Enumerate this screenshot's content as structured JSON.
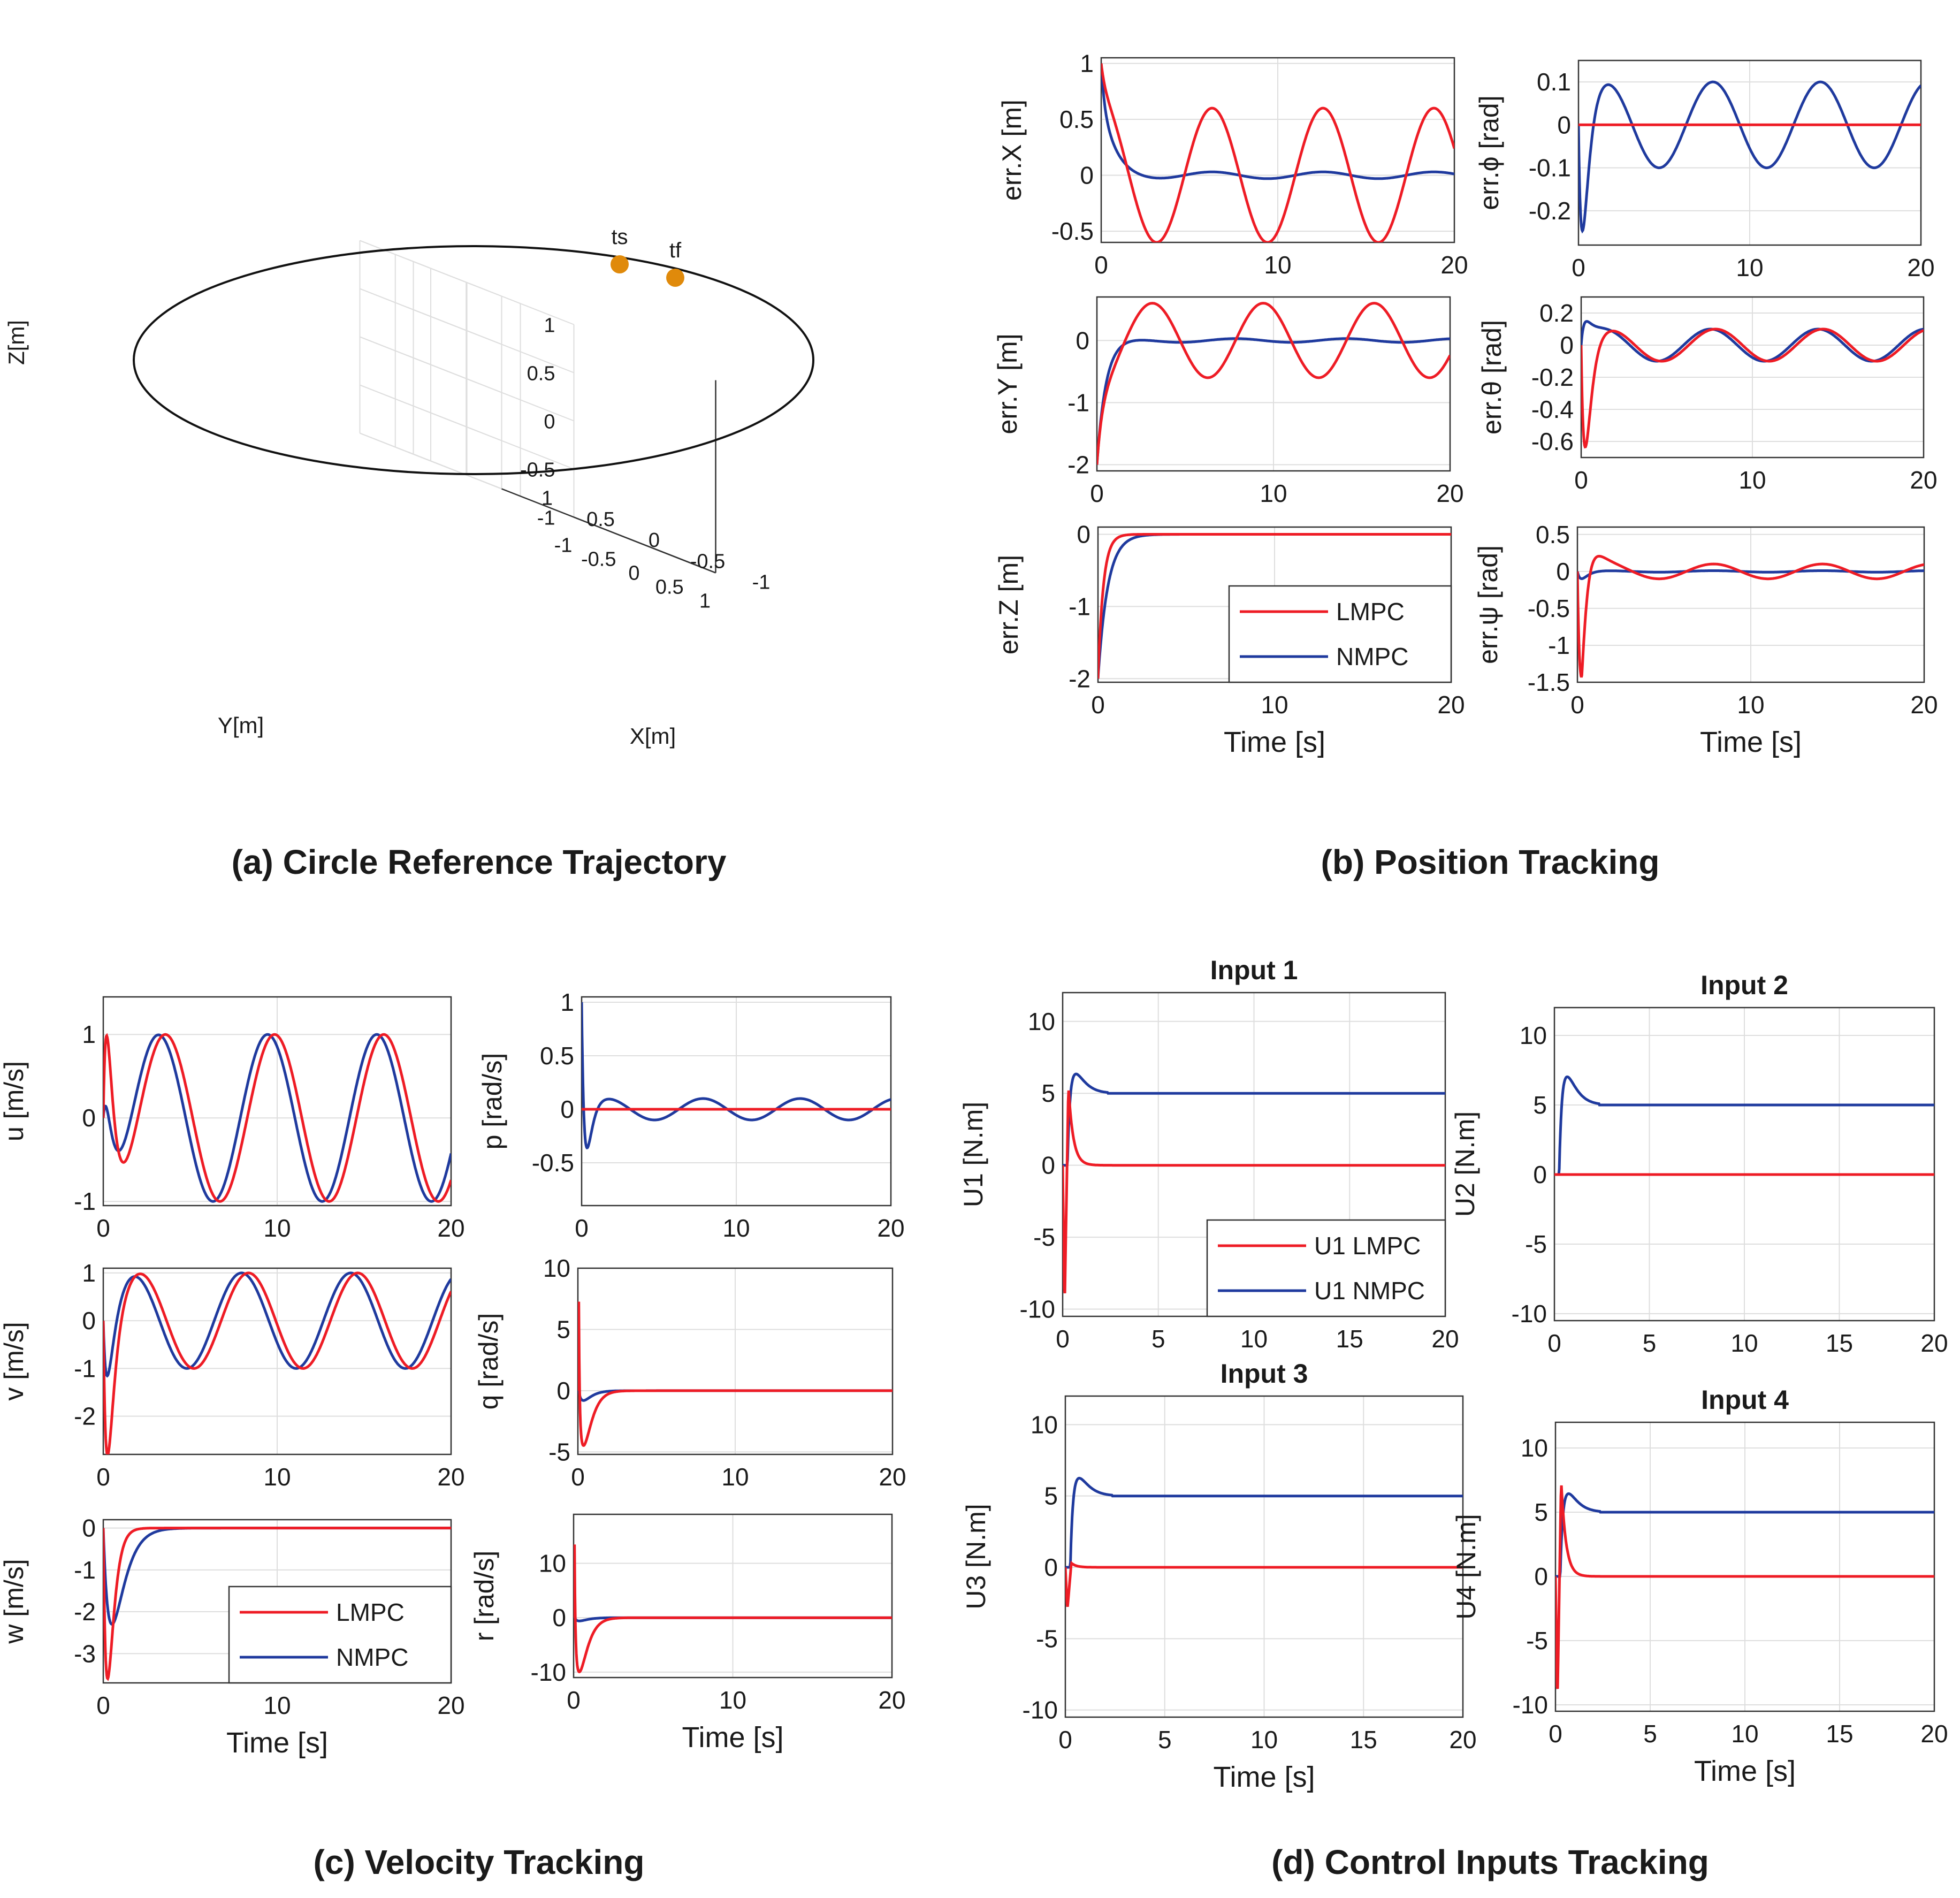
{
  "panels": {
    "a": {
      "caption": "(a) Circle Reference Trajectory"
    },
    "b": {
      "caption": "(b) Position Tracking"
    },
    "c": {
      "caption": "(c) Velocity Tracking"
    },
    "d": {
      "caption": "(d) Control Inputs Tracking"
    }
  },
  "colors": {
    "lmpc": "#ee1c25",
    "nmpc": "#1f3a9e",
    "trajectory": "#111111",
    "marker": "#e08a0b",
    "grid": "#dedede"
  },
  "chart_data": [
    {
      "panel": "a",
      "type": "line3d",
      "xlabel": "X[m]",
      "ylabel": "Y[m]",
      "zlabel": "Z[m]",
      "xlim": [
        -1,
        1
      ],
      "ylim": [
        -1,
        1
      ],
      "zlim": [
        -1,
        1
      ],
      "xticks": [
        "-1",
        "-0.5",
        "0",
        "0.5",
        "1"
      ],
      "yticks": [
        "-1",
        "-0.5",
        "0",
        "0.5",
        "1"
      ],
      "zticks": [
        "-1",
        "-0.5",
        "0",
        "0.5",
        "1"
      ],
      "grid": true,
      "series": [
        {
          "shape": "circle",
          "radius": 1,
          "z": 0
        }
      ],
      "annotations": [
        {
          "label": "ts",
          "angle_deg": 8
        },
        {
          "label": "tf",
          "angle_deg": 18
        }
      ]
    },
    {
      "panel": "b",
      "type": "line",
      "ylabel": "err.X [m]",
      "xlim": [
        0,
        20
      ],
      "ylim": [
        -0.6,
        1.05
      ],
      "yticks": [
        "-0.5",
        "0",
        "0.5",
        "1"
      ],
      "xticks": [
        "0",
        "10",
        "20"
      ],
      "xlabel": "",
      "series": [
        {
          "key": "lmpc",
          "model": "osc",
          "init": 1,
          "amp": 0.6,
          "period": 6.28,
          "phase": 1.57,
          "tau": 0.3
        },
        {
          "key": "nmpc",
          "model": "osc",
          "init": 1,
          "amp": 0.03,
          "period": 6.28,
          "phase": 1.57,
          "tau": 0.6,
          "over": -0.1
        }
      ]
    },
    {
      "panel": "b",
      "type": "line",
      "ylabel": "err.ϕ [rad]",
      "xlim": [
        0,
        20
      ],
      "ylim": [
        -0.28,
        0.15
      ],
      "yticks": [
        "-0.2",
        "-0.1",
        "0",
        "0.1"
      ],
      "xticks": [
        "0",
        "10",
        "20"
      ],
      "xlabel": "",
      "series": [
        {
          "key": "lmpc",
          "model": "const",
          "value": 0
        },
        {
          "key": "nmpc",
          "model": "osc",
          "init": 0,
          "amp": 0.1,
          "period": 6.28,
          "phase": 0,
          "tau": 0.3,
          "over": -0.26
        }
      ]
    },
    {
      "panel": "b",
      "type": "line",
      "ylabel": "err.Y [m]",
      "xlim": [
        0,
        20
      ],
      "ylim": [
        -2.1,
        0.7
      ],
      "yticks": [
        "-2",
        "-1",
        "0"
      ],
      "xticks": [
        "0",
        "10",
        "20"
      ],
      "xlabel": "",
      "series": [
        {
          "key": "lmpc",
          "model": "osc",
          "init": -2,
          "amp": 0.6,
          "period": 6.28,
          "phase": -1.57,
          "tau": 0.35
        },
        {
          "key": "nmpc",
          "model": "osc",
          "init": -2,
          "amp": 0.03,
          "period": 6.28,
          "phase": 0,
          "tau": 0.5
        }
      ]
    },
    {
      "panel": "b",
      "type": "line",
      "ylabel": "err.θ [rad]",
      "xlim": [
        0,
        20
      ],
      "ylim": [
        -0.7,
        0.3
      ],
      "yticks": [
        "-0.6",
        "-0.4",
        "-0.2",
        "0",
        "0.2"
      ],
      "xticks": [
        "0",
        "10",
        "20"
      ],
      "xlabel": "",
      "series": [
        {
          "key": "lmpc",
          "model": "osc",
          "init": 0,
          "amp": 0.1,
          "period": 6.28,
          "phase": 0,
          "tau": 0.25,
          "over": -0.65
        },
        {
          "key": "nmpc",
          "model": "osc",
          "init": 0,
          "amp": 0.1,
          "period": 6.28,
          "phase": 0.3,
          "tau": 0.4,
          "over": 0.12
        }
      ]
    },
    {
      "panel": "b",
      "type": "line",
      "ylabel": "err.Z [m]",
      "xlim": [
        0,
        20
      ],
      "ylim": [
        -2.05,
        0.1
      ],
      "yticks": [
        "-2",
        "-1",
        "0"
      ],
      "xticks": [
        "0",
        "10",
        "20"
      ],
      "xlabel": "Time [s]",
      "legend": {
        "position": "bottom-right",
        "entries": [
          "LMPC",
          "NMPC"
        ]
      },
      "series": [
        {
          "key": "lmpc",
          "model": "decay",
          "init": -2,
          "tau": 0.3
        },
        {
          "key": "nmpc",
          "model": "decay",
          "init": -2,
          "tau": 0.55
        }
      ]
    },
    {
      "panel": "b",
      "type": "line",
      "ylabel": "err.ψ [rad]",
      "xlim": [
        0,
        20
      ],
      "ylim": [
        -1.5,
        0.6
      ],
      "yticks": [
        "-1.5",
        "-1",
        "-0.5",
        "0",
        "0.5"
      ],
      "xticks": [
        "0",
        "10",
        "20"
      ],
      "xlabel": "Time [s]",
      "series": [
        {
          "key": "lmpc",
          "model": "osc",
          "init": 0,
          "amp": 0.1,
          "period": 6.28,
          "phase": 0,
          "tau": 0.3,
          "over": -1.45,
          "over2": 0.55
        },
        {
          "key": "nmpc",
          "model": "osc",
          "init": 0,
          "amp": 0.01,
          "period": 6.28,
          "phase": 0,
          "tau": 0.3,
          "over": -0.1
        }
      ]
    },
    {
      "panel": "c",
      "type": "line",
      "ylabel": "u [m/s]",
      "xlim": [
        0,
        20
      ],
      "ylim": [
        -1.05,
        1.45
      ],
      "yticks": [
        "-1",
        "0",
        "1"
      ],
      "xticks": [
        "0",
        "10",
        "20"
      ],
      "xlabel": "",
      "series": [
        {
          "key": "lmpc",
          "model": "osc",
          "init": 0,
          "amp": 1,
          "period": 6.28,
          "phase": -2.0,
          "tau": 0.4,
          "over": 1.4
        },
        {
          "key": "nmpc",
          "model": "osc",
          "init": 0,
          "amp": 1,
          "period": 6.28,
          "phase": -1.6,
          "tau": 0.6,
          "over": 0.4
        }
      ]
    },
    {
      "panel": "c",
      "type": "line",
      "ylabel": "p [rad/s]",
      "xlim": [
        0,
        20
      ],
      "ylim": [
        -0.9,
        1.05
      ],
      "yticks": [
        "-0.5",
        "0",
        "0.5",
        "1"
      ],
      "xticks": [
        "0",
        "10",
        "20"
      ],
      "xlabel": "",
      "series": [
        {
          "key": "lmpc",
          "model": "const",
          "value": 0
        },
        {
          "key": "nmpc",
          "model": "osc",
          "init": 1,
          "amp": 0.1,
          "period": 6.28,
          "phase": 0,
          "tau": 0.4,
          "over": -0.85
        }
      ]
    },
    {
      "panel": "c",
      "type": "line",
      "ylabel": "v [m/s]",
      "xlim": [
        0,
        20
      ],
      "ylim": [
        -2.8,
        1.1
      ],
      "yticks": [
        "-2",
        "-1",
        "0",
        "1"
      ],
      "xticks": [
        "0",
        "10",
        "20"
      ],
      "xlabel": "",
      "series": [
        {
          "key": "lmpc",
          "model": "osc",
          "init": 0,
          "amp": 1,
          "period": 6.28,
          "phase": -0.5,
          "tau": 0.4,
          "over": -2.7
        },
        {
          "key": "nmpc",
          "model": "osc",
          "init": 0,
          "amp": 1,
          "period": 6.28,
          "phase": -0.1,
          "tau": 0.6,
          "over": -1.2
        }
      ]
    },
    {
      "panel": "c",
      "type": "line",
      "ylabel": "q [rad/s]",
      "xlim": [
        0,
        20
      ],
      "ylim": [
        -5.2,
        10
      ],
      "yticks": [
        "-5",
        "0",
        "5",
        "10"
      ],
      "xticks": [
        "0",
        "10",
        "20"
      ],
      "xlabel": "",
      "series": [
        {
          "key": "lmpc",
          "model": "spike",
          "peak": 9.5,
          "trough": -4.5
        },
        {
          "key": "nmpc",
          "model": "spike",
          "peak": 0.5,
          "trough": -0.8
        }
      ]
    },
    {
      "panel": "c",
      "type": "line",
      "ylabel": "w [m/s]",
      "xlim": [
        0,
        20
      ],
      "ylim": [
        -3.7,
        0.2
      ],
      "yticks": [
        "-3",
        "-2",
        "-1",
        "0"
      ],
      "xticks": [
        "0",
        "10",
        "20"
      ],
      "xlabel": "Time [s]",
      "legend": {
        "position": "bottom-right",
        "entries": [
          "LMPC",
          "NMPC"
        ]
      },
      "series": [
        {
          "key": "lmpc",
          "model": "dip",
          "min": -3.6,
          "tau": 0.25
        },
        {
          "key": "nmpc",
          "model": "dip",
          "min": -2.3,
          "tau": 0.5
        }
      ]
    },
    {
      "panel": "c",
      "type": "line",
      "ylabel": "r [rad/s]",
      "xlim": [
        0,
        20
      ],
      "ylim": [
        -11,
        19
      ],
      "yticks": [
        "-10",
        "0",
        "10"
      ],
      "xticks": [
        "0",
        "10",
        "20"
      ],
      "xlabel": "Time [s]",
      "series": [
        {
          "key": "lmpc",
          "model": "spike",
          "peak": 18,
          "trough": -10
        },
        {
          "key": "nmpc",
          "model": "spike",
          "peak": 0.6,
          "trough": -0.6
        }
      ]
    },
    {
      "panel": "d",
      "type": "line",
      "title": "Input 1",
      "ylabel": "U1 [N.m]",
      "xlim": [
        0,
        20
      ],
      "ylim": [
        -10.5,
        12
      ],
      "yticks": [
        "-10",
        "-5",
        "0",
        "5",
        "10"
      ],
      "xticks": [
        "0",
        "5",
        "10",
        "15",
        "20"
      ],
      "xlabel": "",
      "legend": {
        "position": "bottom-right",
        "entries": [
          "U1 LMPC",
          "U1 NMPC"
        ]
      },
      "series": [
        {
          "key": "lmpc",
          "model": "inputL",
          "min": -10,
          "max": 5.5,
          "final": 0
        },
        {
          "key": "nmpc",
          "model": "inputN",
          "peak": 6.5,
          "final": 5
        }
      ]
    },
    {
      "panel": "d",
      "type": "line",
      "title": "Input 2",
      "ylabel": "U2 [N.m]",
      "xlim": [
        0,
        20
      ],
      "ylim": [
        -10.5,
        12
      ],
      "yticks": [
        "-10",
        "-5",
        "0",
        "5",
        "10"
      ],
      "xticks": [
        "0",
        "5",
        "10",
        "15",
        "20"
      ],
      "xlabel": "",
      "series": [
        {
          "key": "lmpc",
          "model": "const",
          "value": 0
        },
        {
          "key": "nmpc",
          "model": "inputN",
          "peak": 7.2,
          "final": 5
        }
      ]
    },
    {
      "panel": "d",
      "type": "line",
      "title": "Input 3",
      "ylabel": "U3 [N.m]",
      "xlim": [
        0,
        20
      ],
      "ylim": [
        -10.5,
        12
      ],
      "yticks": [
        "-10",
        "-5",
        "0",
        "5",
        "10"
      ],
      "xticks": [
        "0",
        "5",
        "10",
        "15",
        "20"
      ],
      "xlabel": "Time [s]",
      "series": [
        {
          "key": "lmpc",
          "model": "inputL",
          "min": -3,
          "max": 0.3,
          "final": 0
        },
        {
          "key": "nmpc",
          "model": "inputN",
          "peak": 6.4,
          "final": 5
        }
      ]
    },
    {
      "panel": "d",
      "type": "line",
      "title": "Input 4",
      "ylabel": "U4 [N.m]",
      "xlim": [
        0,
        20
      ],
      "ylim": [
        -10.5,
        12
      ],
      "yticks": [
        "-10",
        "-5",
        "0",
        "5",
        "10"
      ],
      "xticks": [
        "0",
        "5",
        "10",
        "15",
        "20"
      ],
      "xlabel": "Time [s]",
      "series": [
        {
          "key": "lmpc",
          "model": "inputL",
          "min": -10,
          "max": 7.5,
          "final": 0
        },
        {
          "key": "nmpc",
          "model": "inputN",
          "peak": 6.6,
          "final": 5
        }
      ]
    }
  ]
}
